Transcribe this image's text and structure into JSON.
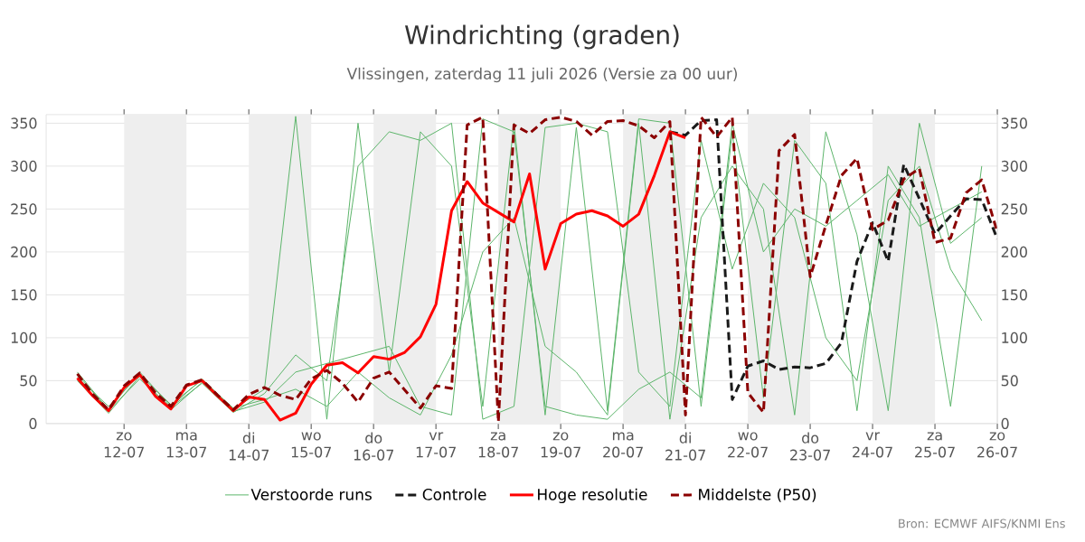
{
  "chart_data": {
    "type": "line",
    "title": "Windrichting (graden)",
    "subtitle": "Vlissingen, zaterdag 11 juli 2026 (Versie za 00 uur)",
    "annotations": [
      "Bron: ECMWF AIFS/KNMI Ens"
    ],
    "xlim": [
      "2026-07-10T18:00",
      "2026-07-26T00:00"
    ],
    "xticks": [
      {
        "value": "2026-07-12",
        "label": "zo 12-07"
      },
      {
        "value": "2026-07-13",
        "label": "ma 13-07"
      },
      {
        "value": "2026-07-14",
        "label": "di 14-07"
      },
      {
        "value": "2026-07-15",
        "label": "wo 15-07"
      },
      {
        "value": "2026-07-16",
        "label": "do 16-07"
      },
      {
        "value": "2026-07-17",
        "label": "vr 17-07"
      },
      {
        "value": "2026-07-18",
        "label": "za 18-07"
      },
      {
        "value": "2026-07-19",
        "label": "zo 19-07"
      },
      {
        "value": "2026-07-20",
        "label": "ma 20-07"
      },
      {
        "value": "2026-07-21",
        "label": "di 21-07"
      },
      {
        "value": "2026-07-22",
        "label": "wo 22-07"
      },
      {
        "value": "2026-07-23",
        "label": "do 23-07"
      },
      {
        "value": "2026-07-24",
        "label": "vr 24-07"
      },
      {
        "value": "2026-07-25",
        "label": "za 25-07"
      },
      {
        "value": "2026-07-26",
        "label": "zo 26-07"
      }
    ],
    "ylim": [
      0,
      360
    ],
    "yticks": [
      0,
      50,
      100,
      150,
      200,
      250,
      300,
      350
    ],
    "y2lim": [
      0,
      360
    ],
    "y2ticks": [
      0,
      50,
      100,
      150,
      200,
      250,
      300,
      350
    ],
    "grid": "y",
    "legend": "bottom",
    "bands": [
      {
        "axis": "x",
        "from": "2026-07-12",
        "to": "2026-07-13",
        "color": "#eeeeee"
      },
      {
        "axis": "x",
        "from": "2026-07-14",
        "to": "2026-07-15",
        "color": "#eeeeee"
      },
      {
        "axis": "x",
        "from": "2026-07-16",
        "to": "2026-07-17",
        "color": "#eeeeee"
      },
      {
        "axis": "x",
        "from": "2026-07-18",
        "to": "2026-07-19",
        "color": "#eeeeee"
      },
      {
        "axis": "x",
        "from": "2026-07-20",
        "to": "2026-07-21",
        "color": "#eeeeee"
      },
      {
        "axis": "x",
        "from": "2026-07-22",
        "to": "2026-07-23",
        "color": "#eeeeee"
      },
      {
        "axis": "x",
        "from": "2026-07-24",
        "to": "2026-07-25",
        "color": "#eeeeee"
      }
    ],
    "series": [
      {
        "name": "Verstoorde runs",
        "color": "#5cb56a",
        "line_style": "solid",
        "x": [
          "2026-07-11T06:00",
          "2026-07-11T18:00",
          "2026-07-12T06:00",
          "2026-07-12T18:00",
          "2026-07-13T06:00",
          "2026-07-13T18:00",
          "2026-07-14T06:00",
          "2026-07-14T18:00",
          "2026-07-15T06:00",
          "2026-07-15T18:00",
          "2026-07-16T06:00",
          "2026-07-16T18:00",
          "2026-07-17T06:00",
          "2026-07-17T18:00",
          "2026-07-18T06:00",
          "2026-07-18T18:00",
          "2026-07-19T06:00",
          "2026-07-19T18:00",
          "2026-07-20T06:00",
          "2026-07-20T18:00",
          "2026-07-21T06:00",
          "2026-07-21T18:00",
          "2026-07-22T06:00",
          "2026-07-22T18:00",
          "2026-07-23T06:00",
          "2026-07-23T18:00",
          "2026-07-24T06:00",
          "2026-07-24T18:00",
          "2026-07-25T06:00",
          "2026-07-25T18:00"
        ],
        "values": [
          60,
          16,
          60,
          20,
          52,
          17,
          40,
          358,
          5,
          350,
          60,
          340,
          300,
          20,
          350,
          10,
          345,
          15,
          355,
          350,
          20,
          340,
          30,
          330,
          280,
          15,
          300,
          240,
          20,
          300
        ]
      },
      {
        "color": "#5cb56a",
        "line_style": "solid",
        "x": [
          "2026-07-11T06:00",
          "2026-07-11T18:00",
          "2026-07-12T06:00",
          "2026-07-12T18:00",
          "2026-07-13T06:00",
          "2026-07-13T18:00",
          "2026-07-14T06:00",
          "2026-07-14T18:00",
          "2026-07-15T06:00",
          "2026-07-15T18:00",
          "2026-07-16T06:00",
          "2026-07-16T18:00",
          "2026-07-17T06:00",
          "2026-07-17T18:00",
          "2026-07-18T06:00",
          "2026-07-18T18:00",
          "2026-07-19T06:00",
          "2026-07-19T18:00",
          "2026-07-20T06:00",
          "2026-07-20T18:00",
          "2026-07-21T06:00",
          "2026-07-21T18:00",
          "2026-07-22T06:00",
          "2026-07-22T18:00",
          "2026-07-23T06:00",
          "2026-07-23T18:00",
          "2026-07-24T06:00",
          "2026-07-24T18:00",
          "2026-07-25T06:00",
          "2026-07-25T18:00"
        ],
        "values": [
          50,
          12,
          55,
          16,
          48,
          14,
          25,
          60,
          70,
          80,
          90,
          20,
          10,
          355,
          340,
          20,
          10,
          5,
          40,
          60,
          30,
          350,
          200,
          250,
          230,
          260,
          290,
          230,
          250,
          270
        ]
      },
      {
        "color": "#5cb56a",
        "line_style": "solid",
        "x": [
          "2026-07-11T06:00",
          "2026-07-11T18:00",
          "2026-07-12T06:00",
          "2026-07-12T18:00",
          "2026-07-13T06:00",
          "2026-07-13T18:00",
          "2026-07-14T06:00",
          "2026-07-14T18:00",
          "2026-07-15T06:00",
          "2026-07-15T18:00",
          "2026-07-16T06:00",
          "2026-07-16T18:00",
          "2026-07-17T06:00",
          "2026-07-17T18:00",
          "2026-07-18T06:00",
          "2026-07-18T18:00",
          "2026-07-19T06:00",
          "2026-07-19T18:00",
          "2026-07-20T06:00",
          "2026-07-20T18:00",
          "2026-07-21T06:00",
          "2026-07-21T18:00",
          "2026-07-22T06:00",
          "2026-07-22T18:00",
          "2026-07-23T06:00",
          "2026-07-23T18:00",
          "2026-07-24T06:00",
          "2026-07-24T18:00",
          "2026-07-25T06:00",
          "2026-07-25T18:00"
        ],
        "values": [
          58,
          15,
          52,
          19,
          47,
          13,
          35,
          80,
          50,
          300,
          340,
          330,
          350,
          5,
          20,
          345,
          350,
          340,
          60,
          20,
          330,
          180,
          280,
          240,
          100,
          50,
          260,
          300,
          180,
          120
        ]
      },
      {
        "color": "#5cb56a",
        "line_style": "solid",
        "x": [
          "2026-07-11T06:00",
          "2026-07-11T18:00",
          "2026-07-12T06:00",
          "2026-07-12T18:00",
          "2026-07-13T06:00",
          "2026-07-13T18:00",
          "2026-07-14T06:00",
          "2026-07-14T18:00",
          "2026-07-15T06:00",
          "2026-07-15T18:00",
          "2026-07-16T06:00",
          "2026-07-16T18:00",
          "2026-07-17T06:00",
          "2026-07-17T18:00",
          "2026-07-18T06:00",
          "2026-07-18T18:00",
          "2026-07-19T06:00",
          "2026-07-19T18:00",
          "2026-07-20T06:00",
          "2026-07-20T18:00",
          "2026-07-21T06:00",
          "2026-07-21T18:00",
          "2026-07-22T06:00",
          "2026-07-22T18:00",
          "2026-07-23T06:00",
          "2026-07-23T18:00",
          "2026-07-24T06:00",
          "2026-07-24T18:00",
          "2026-07-25T06:00",
          "2026-07-25T18:00"
        ],
        "values": [
          54,
          20,
          57,
          22,
          51,
          18,
          28,
          40,
          20,
          60,
          30,
          10,
          80,
          200,
          240,
          90,
          60,
          10,
          350,
          5,
          240,
          300,
          250,
          10,
          340,
          220,
          15,
          350,
          210,
          240
        ]
      },
      {
        "name": "Controle",
        "color": "#1a1a1a",
        "line_style": "dashed",
        "x": [
          "2026-07-20T18:00",
          "2026-07-21T00:00",
          "2026-07-21T06:00",
          "2026-07-21T12:00",
          "2026-07-21T18:00",
          "2026-07-22T00:00",
          "2026-07-22T06:00",
          "2026-07-22T12:00",
          "2026-07-22T18:00",
          "2026-07-23T00:00",
          "2026-07-23T06:00",
          "2026-07-23T12:00",
          "2026-07-23T18:00",
          "2026-07-24T00:00",
          "2026-07-24T06:00",
          "2026-07-24T12:00",
          "2026-07-24T18:00",
          "2026-07-25T00:00",
          "2026-07-25T06:00",
          "2026-07-25T12:00",
          "2026-07-25T18:00",
          "2026-07-26T00:00"
        ],
        "values": [
          340,
          336,
          353,
          354,
          28,
          67,
          73,
          63,
          66,
          65,
          70,
          94,
          189,
          234,
          189,
          302,
          262,
          221,
          242,
          262,
          261,
          215
        ]
      },
      {
        "name": "Hoge resolutie",
        "color": "#ff0000",
        "line_style": "solid",
        "x": [
          "2026-07-11T06:00",
          "2026-07-11T12:00",
          "2026-07-11T18:00",
          "2026-07-12T00:00",
          "2026-07-12T06:00",
          "2026-07-12T12:00",
          "2026-07-12T18:00",
          "2026-07-13T00:00",
          "2026-07-13T06:00",
          "2026-07-13T12:00",
          "2026-07-13T18:00",
          "2026-07-14T00:00",
          "2026-07-14T06:00",
          "2026-07-14T12:00",
          "2026-07-14T18:00",
          "2026-07-15T00:00",
          "2026-07-15T06:00",
          "2026-07-15T12:00",
          "2026-07-15T18:00",
          "2026-07-16T00:00",
          "2026-07-16T06:00",
          "2026-07-16T12:00",
          "2026-07-16T18:00",
          "2026-07-17T00:00",
          "2026-07-17T06:00",
          "2026-07-17T12:00",
          "2026-07-17T18:00",
          "2026-07-18T00:00",
          "2026-07-18T06:00",
          "2026-07-18T12:00",
          "2026-07-18T18:00",
          "2026-07-19T00:00",
          "2026-07-19T06:00",
          "2026-07-19T12:00",
          "2026-07-19T18:00",
          "2026-07-20T00:00",
          "2026-07-20T06:00",
          "2026-07-20T12:00",
          "2026-07-20T18:00",
          "2026-07-21T00:00"
        ],
        "values": [
          53,
          32,
          15,
          42,
          57,
          32,
          17,
          44,
          50,
          32,
          15,
          31,
          28,
          4,
          12,
          46,
          68,
          71,
          59,
          78,
          75,
          83,
          101,
          139,
          248,
          282,
          257,
          246,
          235,
          291,
          180,
          233,
          244,
          248,
          242,
          230,
          244,
          289,
          340,
          333
        ]
      },
      {
        "name": "Middelste (P50)",
        "color": "#8b0000",
        "line_style": "dashed",
        "x": [
          "2026-07-11T06:00",
          "2026-07-11T12:00",
          "2026-07-11T18:00",
          "2026-07-12T00:00",
          "2026-07-12T06:00",
          "2026-07-12T12:00",
          "2026-07-12T18:00",
          "2026-07-13T00:00",
          "2026-07-13T06:00",
          "2026-07-13T12:00",
          "2026-07-13T18:00",
          "2026-07-14T00:00",
          "2026-07-14T06:00",
          "2026-07-14T12:00",
          "2026-07-14T18:00",
          "2026-07-15T00:00",
          "2026-07-15T06:00",
          "2026-07-15T12:00",
          "2026-07-15T18:00",
          "2026-07-16T00:00",
          "2026-07-16T06:00",
          "2026-07-16T12:00",
          "2026-07-16T18:00",
          "2026-07-17T00:00",
          "2026-07-17T06:00",
          "2026-07-17T12:00",
          "2026-07-17T18:00",
          "2026-07-18T00:00",
          "2026-07-18T06:00",
          "2026-07-18T12:00",
          "2026-07-18T18:00",
          "2026-07-19T00:00",
          "2026-07-19T06:00",
          "2026-07-19T12:00",
          "2026-07-19T18:00",
          "2026-07-20T00:00",
          "2026-07-20T06:00",
          "2026-07-20T12:00",
          "2026-07-20T18:00",
          "2026-07-21T00:00",
          "2026-07-21T06:00",
          "2026-07-21T12:00",
          "2026-07-21T18:00",
          "2026-07-22T00:00",
          "2026-07-22T06:00",
          "2026-07-22T12:00",
          "2026-07-22T18:00",
          "2026-07-23T00:00",
          "2026-07-23T06:00",
          "2026-07-23T12:00",
          "2026-07-23T18:00",
          "2026-07-24T00:00",
          "2026-07-24T06:00",
          "2026-07-24T12:00",
          "2026-07-24T18:00",
          "2026-07-25T00:00",
          "2026-07-25T06:00",
          "2026-07-25T12:00",
          "2026-07-25T18:00",
          "2026-07-26T00:00"
        ],
        "values": [
          58,
          34,
          16,
          44,
          59,
          36,
          20,
          45,
          51,
          33,
          16,
          34,
          42,
          33,
          28,
          52,
          62,
          47,
          25,
          53,
          60,
          39,
          18,
          44,
          41,
          348,
          357,
          2,
          348,
          338,
          354,
          357,
          352,
          336,
          352,
          353,
          347,
          333,
          352,
          10,
          357,
          334,
          357,
          36,
          13,
          318,
          337,
          171,
          231,
          289,
          309,
          226,
          237,
          285,
          297,
          211,
          216,
          269,
          284,
          223
        ]
      }
    ]
  }
}
